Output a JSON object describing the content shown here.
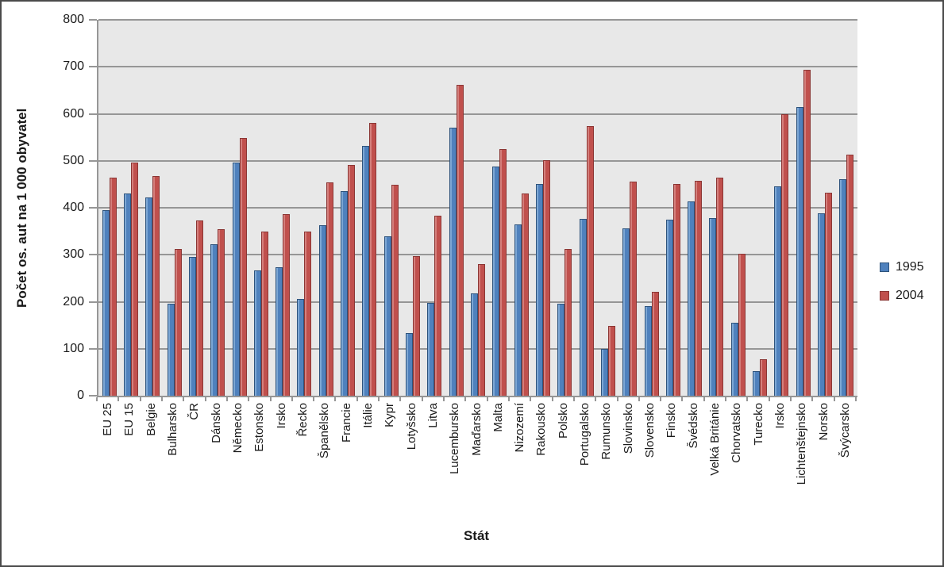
{
  "window": {
    "background": "#ffffff",
    "border_color": "#4a4a4a"
  },
  "chart_data": {
    "type": "bar",
    "title": "",
    "xlabel": "Stát",
    "ylabel": "Počet os. aut na 1 000 obyvatel",
    "ylim": [
      0,
      800
    ],
    "yticks": [
      0,
      100,
      200,
      300,
      400,
      500,
      600,
      700,
      800
    ],
    "grid": true,
    "legend_position": "right-middle",
    "plot_bg": "#e8e8e8",
    "gridline_color": "#969696",
    "text_color": "#1a1a1a",
    "categories": [
      "EU 25",
      "EU 15",
      "Belgie",
      "Bulharsko",
      "ČR",
      "Dánsko",
      "Německo",
      "Estonsko",
      "Irsko",
      "Řecko",
      "Španělsko",
      "Francie",
      "Itálie",
      "Kypr",
      "Lotyšsko",
      "Litva",
      "Lucembursko",
      "Maďarsko",
      "Malta",
      "Nizozemí",
      "Rakousko",
      "Polsko",
      "Portugalsko",
      "Rumunsko",
      "Slovinsko",
      "Slovensko",
      "Finsko",
      "Švédsko",
      "Velká Británie",
      "Chorvatsko",
      "Turecko",
      "Irsko",
      "Lichtenštejnsko",
      "Norsko",
      "Švýcarsko"
    ],
    "series": [
      {
        "name": "1995",
        "color": "#4f81bd",
        "color_light": "#7da7d4",
        "color_dark": "#2e537c",
        "values": [
          395,
          430,
          422,
          196,
          295,
          322,
          496,
          267,
          273,
          206,
          363,
          436,
          531,
          340,
          133,
          198,
          570,
          217,
          488,
          365,
          450,
          196,
          376,
          99,
          357,
          191,
          374,
          413,
          378,
          155,
          52,
          446,
          614,
          389,
          461
        ]
      },
      {
        "name": "2004",
        "color": "#c0504d",
        "color_light": "#d47f7c",
        "color_dark": "#8b3634",
        "values": [
          465,
          496,
          467,
          313,
          373,
          355,
          548,
          350,
          386,
          350,
          454,
          491,
          581,
          449,
          297,
          383,
          661,
          280,
          525,
          430,
          501,
          313,
          574,
          149,
          456,
          222,
          450,
          458,
          465,
          303,
          77,
          600,
          694,
          432,
          514
        ]
      }
    ]
  }
}
